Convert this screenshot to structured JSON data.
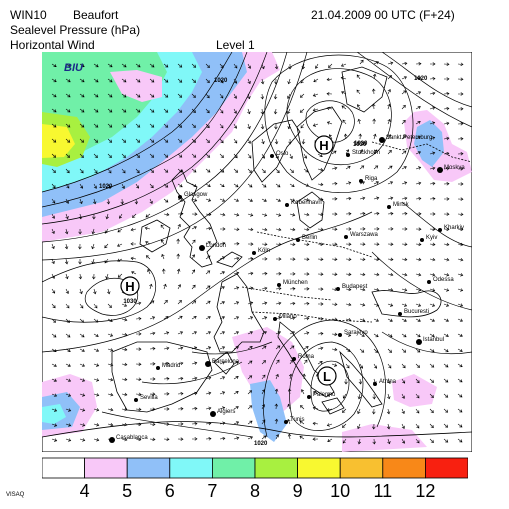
{
  "header": {
    "model": "WIN10",
    "scale": "Beaufort",
    "datetime": "21.04.2009 00 UTC (F+24)",
    "field1": "Sealevel Pressure (hPa)",
    "field2": "Horizontal Wind",
    "level": "Level  1"
  },
  "logo": {
    "text": "BIU"
  },
  "credit": "VISAQ",
  "pressure_centers": [
    {
      "symbol": "H",
      "value": "1030"
    },
    {
      "symbol": "H",
      "value": "1030"
    },
    {
      "symbol": "L",
      "value": ""
    }
  ],
  "isobar_labels": [
    "1020",
    "1030",
    "1020",
    "1020",
    "1020"
  ],
  "cities": [
    {
      "name": "Sankt Petersburg"
    },
    {
      "name": "Moskva"
    },
    {
      "name": "Stockholm"
    },
    {
      "name": "Oslo"
    },
    {
      "name": "Riga"
    },
    {
      "name": "Minsk"
    },
    {
      "name": "Glasgow"
    },
    {
      "name": "København"
    },
    {
      "name": "Kharkiv"
    },
    {
      "name": "Kyiv"
    },
    {
      "name": "Warszawa"
    },
    {
      "name": "Berlin"
    },
    {
      "name": "London"
    },
    {
      "name": "Köln"
    },
    {
      "name": "Odessa"
    },
    {
      "name": "München"
    },
    {
      "name": "Budapest"
    },
    {
      "name": "Milano"
    },
    {
      "name": "Bucuresti"
    },
    {
      "name": "Sarajevo"
    },
    {
      "name": "Istanbul"
    },
    {
      "name": "Roma"
    },
    {
      "name": "Barcelona"
    },
    {
      "name": "Madrid"
    },
    {
      "name": "Sevilla"
    },
    {
      "name": "Palermo"
    },
    {
      "name": "Athina"
    },
    {
      "name": "Algiers"
    },
    {
      "name": "Tunis"
    },
    {
      "name": "Casablanca"
    }
  ],
  "legend": {
    "labels": [
      "4",
      "5",
      "6",
      "7",
      "8",
      "9",
      "10",
      "11",
      "12"
    ],
    "colors": [
      "#ffffff",
      "#f8c8f8",
      "#90c0f8",
      "#80f8f8",
      "#70f0a8",
      "#a8f040",
      "#f8f830",
      "#f8c030",
      "#f88818",
      "#f82010"
    ]
  }
}
